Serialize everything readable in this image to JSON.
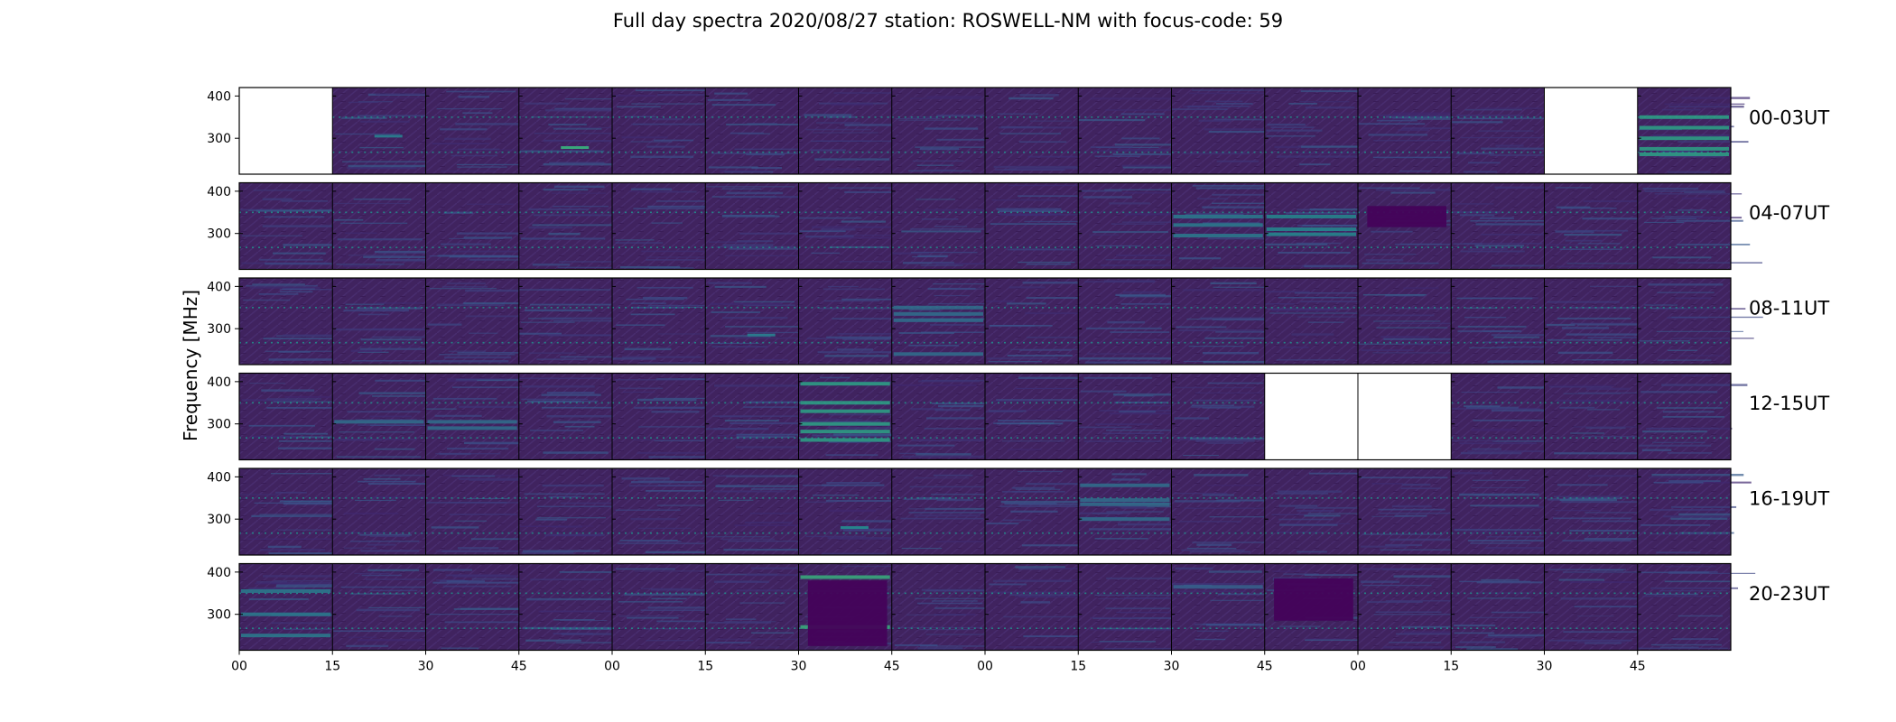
{
  "figure": {
    "title": "Full day spectra 2020/08/27 station: ROSWELL-NM with focus-code: 59",
    "ylabel": "Frequency [MHz]"
  },
  "chart_data": {
    "type": "heatmap",
    "title": "Full day spectra 2020/08/27 station: ROSWELL-NM with focus-code: 59",
    "ylabel": "Frequency [MHz]",
    "xlabel": "",
    "colormap": "viridis",
    "background_color": "#3b1f63",
    "ylim": [
      215,
      420
    ],
    "yticks": [
      400,
      300
    ],
    "xticks": [
      "00",
      "15",
      "30",
      "45",
      "00",
      "15",
      "30",
      "45",
      "00",
      "15",
      "30",
      "45",
      "00",
      "15",
      "30",
      "45"
    ],
    "rows": [
      {
        "label": "00-03UT",
        "missing_cells": [
          0,
          14
        ]
      },
      {
        "label": "04-07UT",
        "missing_cells": []
      },
      {
        "label": "08-11UT",
        "missing_cells": []
      },
      {
        "label": "12-15UT",
        "missing_cells": [
          11,
          12
        ]
      },
      {
        "label": "16-19UT",
        "missing_cells": []
      },
      {
        "label": "20-23UT",
        "missing_cells": []
      }
    ],
    "cells_per_row": 16,
    "minutes_per_cell": 15,
    "persistent_lines_mhz": [
      267,
      350
    ],
    "features": [
      {
        "row": 0,
        "cell": 15,
        "type": "bands",
        "freqs": [
          350,
          325,
          300,
          275,
          262
        ],
        "intensity": 0.55
      },
      {
        "row": 0,
        "cell": 1,
        "type": "spike",
        "freq": 305,
        "intensity": 0.4
      },
      {
        "row": 0,
        "cell": 3,
        "type": "spike",
        "freq": 278,
        "intensity": 0.6
      },
      {
        "row": 1,
        "cell": 10,
        "type": "bands",
        "freqs": [
          340,
          320,
          295
        ],
        "intensity": 0.4
      },
      {
        "row": 1,
        "cell": 11,
        "type": "bands",
        "freqs": [
          340,
          310,
          298
        ],
        "intensity": 0.45
      },
      {
        "row": 1,
        "cell": 12,
        "type": "dark",
        "freqs": [
          365,
          315
        ]
      },
      {
        "row": 2,
        "cell": 7,
        "type": "bands",
        "freqs": [
          350,
          335,
          320,
          240
        ],
        "intensity": 0.35
      },
      {
        "row": 2,
        "cell": 5,
        "type": "spike",
        "freq": 285,
        "intensity": 0.4
      },
      {
        "row": 3,
        "cell": 6,
        "type": "bands",
        "freqs": [
          395,
          350,
          330,
          300,
          282,
          262
        ],
        "intensity": 0.55
      },
      {
        "row": 3,
        "cell": 1,
        "type": "bands",
        "freqs": [
          305
        ],
        "intensity": 0.35
      },
      {
        "row": 3,
        "cell": 2,
        "type": "bands",
        "freqs": [
          305,
          290
        ],
        "intensity": 0.35
      },
      {
        "row": 4,
        "cell": 9,
        "type": "bands",
        "freqs": [
          380,
          345,
          335,
          300
        ],
        "intensity": 0.35
      },
      {
        "row": 4,
        "cell": 6,
        "type": "spike",
        "freq": 280,
        "intensity": 0.45
      },
      {
        "row": 5,
        "cell": 6,
        "type": "bands",
        "freqs": [
          388,
          270
        ],
        "intensity": 0.6
      },
      {
        "row": 5,
        "cell": 6,
        "type": "dark",
        "freqs": [
          380,
          225
        ]
      },
      {
        "row": 5,
        "cell": 10,
        "type": "bands",
        "freqs": [
          365
        ],
        "intensity": 0.3
      },
      {
        "row": 5,
        "cell": 11,
        "type": "dark",
        "freqs": [
          385,
          285
        ]
      },
      {
        "row": 5,
        "cell": 0,
        "type": "bands",
        "freqs": [
          355,
          300,
          250
        ],
        "intensity": 0.4
      }
    ]
  }
}
